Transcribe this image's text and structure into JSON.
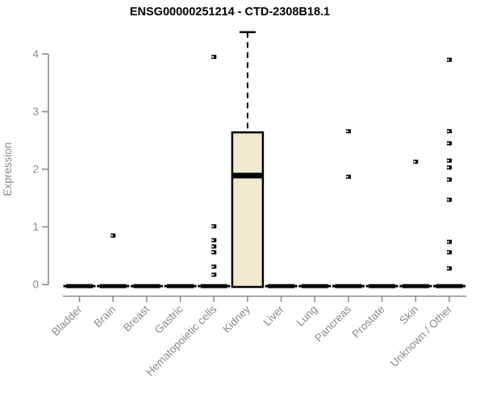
{
  "chart_data": {
    "type": "boxplot",
    "title": "ENSG00000251214 - CTD-2308B18.1",
    "xlabel": "",
    "ylabel": "Expression",
    "ylim": [
      0,
      4.4
    ],
    "yticks": [
      0,
      1,
      2,
      3,
      4
    ],
    "grid": false,
    "legend": "none",
    "colors": {
      "box_fill": "#EFE9D0",
      "box_border": "#000000",
      "flat_box": "#000000",
      "outlier": "#000000",
      "axis": "#8c8c8c",
      "tick_text": "#8a8a8a",
      "title_text": "#000000",
      "background": "#ffffff"
    },
    "categories": [
      "Bladder",
      "Brain",
      "Breast",
      "Gastric",
      "Hematopoietic cells",
      "Kidney",
      "Liver",
      "Lung",
      "Pancreas",
      "Prostate",
      "Skin",
      "Unknown / Other"
    ],
    "series": [
      {
        "category": "Bladder",
        "min": 0,
        "q1": 0,
        "median": 0,
        "q3": 0,
        "max": 0,
        "outliers": []
      },
      {
        "category": "Brain",
        "min": 0,
        "q1": 0,
        "median": 0,
        "q3": 0,
        "max": 0,
        "outliers": [
          0.85
        ]
      },
      {
        "category": "Breast",
        "min": 0,
        "q1": 0,
        "median": 0,
        "q3": 0,
        "max": 0,
        "outliers": []
      },
      {
        "category": "Gastric",
        "min": 0,
        "q1": 0,
        "median": 0,
        "q3": 0,
        "max": 0,
        "outliers": []
      },
      {
        "category": "Hematopoietic cells",
        "min": 0,
        "q1": 0,
        "median": 0,
        "q3": 0,
        "max": 0,
        "outliers": [
          3.95,
          1.01,
          0.77,
          0.66,
          0.56,
          0.31,
          0.17
        ]
      },
      {
        "category": "Kidney",
        "min": 0,
        "q1": 0,
        "median": 1.89,
        "q3": 2.64,
        "max": 4.38,
        "outliers": []
      },
      {
        "category": "Liver",
        "min": 0,
        "q1": 0,
        "median": 0,
        "q3": 0,
        "max": 0,
        "outliers": []
      },
      {
        "category": "Lung",
        "min": 0,
        "q1": 0,
        "median": 0,
        "q3": 0,
        "max": 0,
        "outliers": []
      },
      {
        "category": "Pancreas",
        "min": 0,
        "q1": 0,
        "median": 0,
        "q3": 0,
        "max": 0,
        "outliers": [
          2.66,
          1.87
        ]
      },
      {
        "category": "Prostate",
        "min": 0,
        "q1": 0,
        "median": 0,
        "q3": 0,
        "max": 0,
        "outliers": []
      },
      {
        "category": "Skin",
        "min": 0,
        "q1": 0,
        "median": 0,
        "q3": 0,
        "max": 0,
        "outliers": [
          2.13
        ]
      },
      {
        "category": "Unknown / Other",
        "min": 0,
        "q1": 0,
        "median": 0,
        "q3": 0,
        "max": 0,
        "outliers": [
          3.9,
          2.66,
          2.45,
          2.15,
          2.03,
          1.82,
          1.47,
          0.74,
          0.56,
          0.28
        ]
      }
    ]
  }
}
